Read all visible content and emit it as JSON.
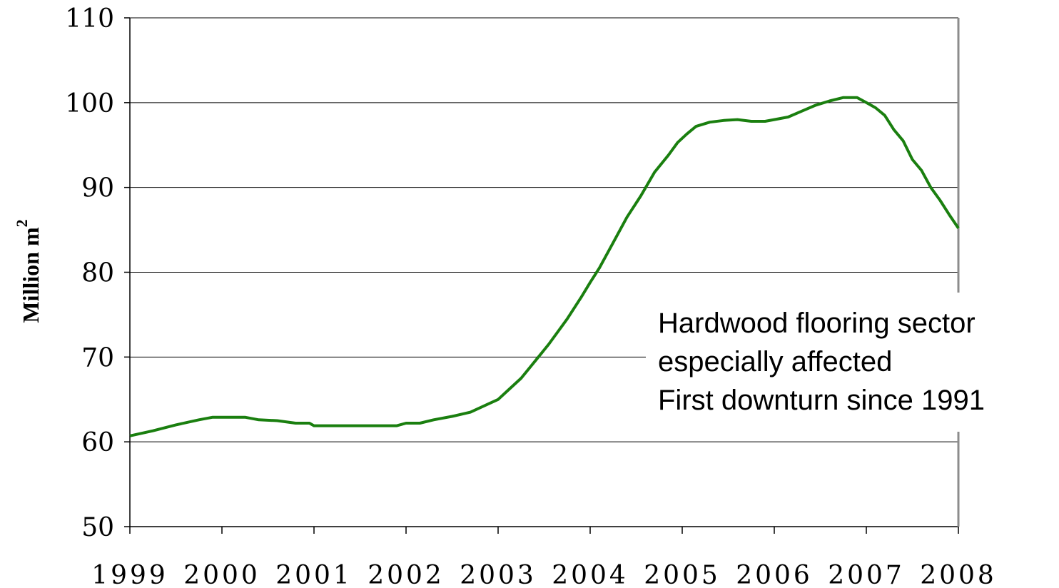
{
  "chart_data": {
    "type": "line",
    "title": "",
    "xlabel": "",
    "ylabel": "Million m",
    "ylabel_superscript": "2",
    "xlim": [
      1999,
      2008
    ],
    "ylim": [
      50,
      110
    ],
    "y_ticks": [
      50,
      60,
      70,
      80,
      90,
      100,
      110
    ],
    "x_ticks": [
      1999,
      2000,
      2001,
      2002,
      2003,
      2004,
      2005,
      2006,
      2007,
      2008
    ],
    "grid": "horizontal",
    "series": [
      {
        "color": "#1a7f0f",
        "points": [
          [
            1999.0,
            60.7
          ],
          [
            1999.25,
            61.3
          ],
          [
            1999.5,
            62.0
          ],
          [
            1999.75,
            62.6
          ],
          [
            1999.9,
            62.9
          ],
          [
            2000.0,
            62.9
          ],
          [
            2000.25,
            62.9
          ],
          [
            2000.4,
            62.6
          ],
          [
            2000.6,
            62.5
          ],
          [
            2000.8,
            62.2
          ],
          [
            2000.95,
            62.2
          ],
          [
            2001.0,
            61.9
          ],
          [
            2001.25,
            61.9
          ],
          [
            2001.5,
            61.9
          ],
          [
            2001.75,
            61.9
          ],
          [
            2001.9,
            61.9
          ],
          [
            2002.0,
            62.2
          ],
          [
            2002.15,
            62.2
          ],
          [
            2002.3,
            62.6
          ],
          [
            2002.5,
            63.0
          ],
          [
            2002.7,
            63.5
          ],
          [
            2002.9,
            64.5
          ],
          [
            2003.0,
            65.0
          ],
          [
            2003.1,
            66.0
          ],
          [
            2003.25,
            67.5
          ],
          [
            2003.4,
            69.5
          ],
          [
            2003.55,
            71.5
          ],
          [
            2003.75,
            74.5
          ],
          [
            2003.9,
            77.0
          ],
          [
            2004.0,
            78.8
          ],
          [
            2004.1,
            80.5
          ],
          [
            2004.25,
            83.5
          ],
          [
            2004.4,
            86.5
          ],
          [
            2004.55,
            89.0
          ],
          [
            2004.7,
            91.8
          ],
          [
            2004.85,
            93.8
          ],
          [
            2004.95,
            95.3
          ],
          [
            2005.05,
            96.3
          ],
          [
            2005.15,
            97.2
          ],
          [
            2005.3,
            97.7
          ],
          [
            2005.45,
            97.9
          ],
          [
            2005.6,
            98.0
          ],
          [
            2005.75,
            97.8
          ],
          [
            2005.9,
            97.8
          ],
          [
            2006.0,
            98.0
          ],
          [
            2006.15,
            98.3
          ],
          [
            2006.3,
            99.0
          ],
          [
            2006.45,
            99.7
          ],
          [
            2006.6,
            100.2
          ],
          [
            2006.75,
            100.6
          ],
          [
            2006.9,
            100.6
          ],
          [
            2007.0,
            100.0
          ],
          [
            2007.1,
            99.4
          ],
          [
            2007.2,
            98.5
          ],
          [
            2007.3,
            96.8
          ],
          [
            2007.4,
            95.5
          ],
          [
            2007.5,
            93.3
          ],
          [
            2007.6,
            92.0
          ],
          [
            2007.7,
            90.0
          ],
          [
            2007.8,
            88.5
          ],
          [
            2007.9,
            86.8
          ],
          [
            2008.0,
            85.2
          ]
        ]
      }
    ],
    "annotation": {
      "lines": [
        "Hardwood flooring sector",
        "especially affected",
        "First downturn since 1991"
      ]
    }
  }
}
